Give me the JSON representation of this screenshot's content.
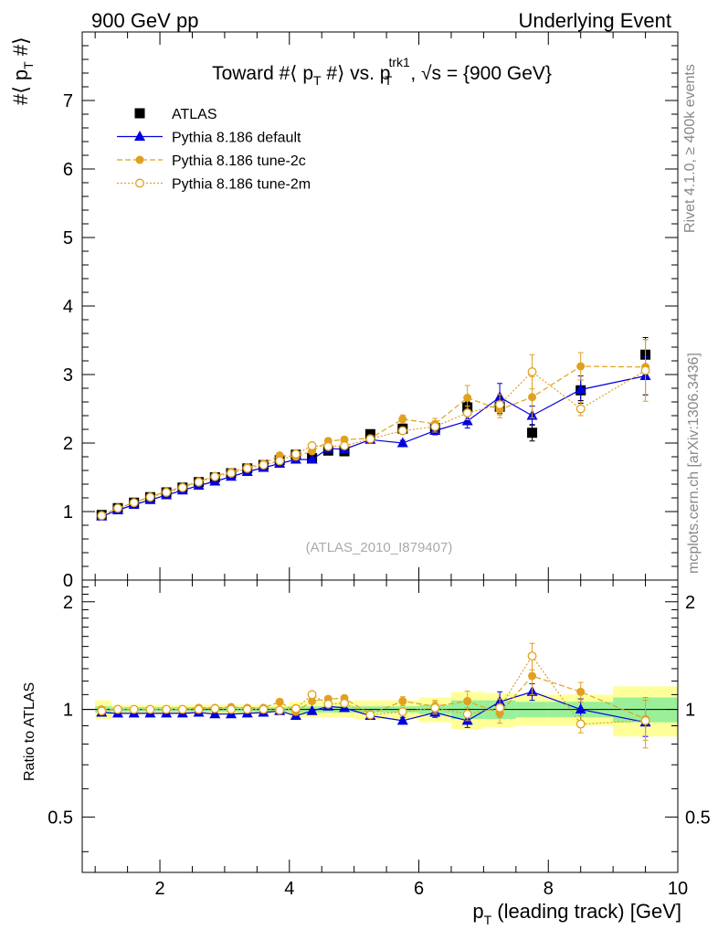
{
  "header": {
    "left": "900 GeV pp",
    "right": "Underlying Event",
    "side_top": "Rivet 4.1.0, ≥ 400k events",
    "side_bottom": "mcplots.cern.ch [arXiv:1306.3436]",
    "watermark": "(ATLAS_2010_I879407)"
  },
  "colors": {
    "atlas": "#000000",
    "default": "#0000dd",
    "tune2c": "#e0a020",
    "tune2m": "#e0a020",
    "band_inner": "#99f099",
    "band_outer": "#ffff99"
  },
  "chart_data": [
    {
      "type": "scatter",
      "title": "Toward #⟨ p_T #⟩ vs. p_T^trk1, √s = {900 GeV}",
      "title_parts": {
        "a": "Toward #⟨ p",
        "b": "T",
        "c": " #⟩ vs. p",
        "d": "trk1",
        "e": "T",
        "f": ", √s = {900 GeV}"
      },
      "ylabel": "#⟨ p_T #⟩",
      "ylabel_parts": {
        "a": "#⟨ p",
        "b": "T",
        "c": " #⟩"
      },
      "xlim": [
        0.8,
        10.0
      ],
      "ylim": [
        0,
        8
      ],
      "x_ticks": [
        2,
        4,
        6,
        8,
        10
      ],
      "y_ticks": [
        0,
        1,
        2,
        3,
        4,
        5,
        6,
        7
      ],
      "legend_position": "top-left",
      "x": [
        1.1,
        1.35,
        1.6,
        1.85,
        2.1,
        2.35,
        2.6,
        2.85,
        3.1,
        3.35,
        3.6,
        3.85,
        4.1,
        4.35,
        4.6,
        4.85,
        5.25,
        5.75,
        6.25,
        6.75,
        7.25,
        7.75,
        8.5,
        9.5
      ],
      "series": [
        {
          "name": "ATLAS",
          "style": "data",
          "values": [
            0.95,
            1.05,
            1.13,
            1.21,
            1.28,
            1.35,
            1.43,
            1.5,
            1.56,
            1.63,
            1.68,
            1.75,
            1.83,
            1.78,
            1.89,
            1.88,
            2.13,
            2.21,
            2.22,
            2.52,
            2.53,
            2.15,
            2.77,
            3.29
          ],
          "errors": [
            0.01,
            0.01,
            0.01,
            0.01,
            0.01,
            0.01,
            0.01,
            0.01,
            0.01,
            0.01,
            0.01,
            0.01,
            0.02,
            0.02,
            0.02,
            0.02,
            0.03,
            0.03,
            0.05,
            0.08,
            0.1,
            0.12,
            0.15,
            0.25
          ]
        },
        {
          "name": "Pythia 8.186 default",
          "style": "default",
          "values": [
            0.93,
            1.02,
            1.1,
            1.17,
            1.24,
            1.31,
            1.38,
            1.44,
            1.51,
            1.58,
            1.64,
            1.7,
            1.76,
            1.76,
            1.92,
            1.91,
            2.05,
            2.0,
            2.18,
            2.32,
            2.67,
            2.4,
            2.78,
            2.98
          ],
          "errors": [
            0.01,
            0.01,
            0.01,
            0.01,
            0.01,
            0.01,
            0.01,
            0.01,
            0.01,
            0.01,
            0.01,
            0.01,
            0.02,
            0.02,
            0.02,
            0.03,
            0.03,
            0.04,
            0.06,
            0.1,
            0.2,
            0.14,
            0.2,
            0.28
          ]
        },
        {
          "name": "Pythia 8.186 tune-2c",
          "style": "tune2c",
          "values": [
            0.95,
            1.05,
            1.13,
            1.22,
            1.29,
            1.36,
            1.44,
            1.52,
            1.58,
            1.65,
            1.7,
            1.82,
            1.8,
            1.88,
            2.03,
            2.05,
            2.07,
            2.35,
            2.28,
            2.66,
            2.49,
            2.67,
            3.12,
            3.11
          ],
          "errors": [
            0.01,
            0.01,
            0.01,
            0.01,
            0.01,
            0.01,
            0.01,
            0.01,
            0.01,
            0.01,
            0.02,
            0.02,
            0.02,
            0.02,
            0.03,
            0.04,
            0.04,
            0.06,
            0.08,
            0.18,
            0.12,
            0.3,
            0.2,
            0.4
          ]
        },
        {
          "name": "Pythia 8.186 tune-2m",
          "style": "tune2m",
          "values": [
            0.94,
            1.05,
            1.13,
            1.21,
            1.28,
            1.35,
            1.43,
            1.51,
            1.56,
            1.63,
            1.68,
            1.74,
            1.84,
            1.96,
            1.95,
            1.96,
            2.06,
            2.18,
            2.24,
            2.44,
            2.56,
            3.04,
            2.5,
            3.06
          ],
          "errors": [
            0.01,
            0.01,
            0.01,
            0.01,
            0.01,
            0.01,
            0.01,
            0.01,
            0.01,
            0.01,
            0.02,
            0.02,
            0.02,
            0.02,
            0.03,
            0.03,
            0.04,
            0.05,
            0.08,
            0.1,
            0.15,
            0.25,
            0.1,
            0.45
          ]
        }
      ]
    },
    {
      "type": "scatter",
      "ylabel": "Ratio to ATLAS",
      "xlabel": "p_T (leading track) [GeV]",
      "xlabel_parts": {
        "a": "p",
        "b": "T",
        "c": " (leading track) [GeV]"
      },
      "xlim": [
        0.8,
        10.0
      ],
      "ylim": [
        0.35,
        2.3
      ],
      "y_ticks": [
        0.5,
        1,
        2
      ],
      "y_tick_labels": [
        "0.5",
        "1",
        "2"
      ],
      "x_ticks": [
        2,
        4,
        6,
        8,
        10
      ],
      "bands": [
        {
          "x0": 1.0,
          "x1": 1.25,
          "inner": 0.02,
          "outer": 0.06
        },
        {
          "x0": 1.25,
          "x1": 4.0,
          "inner": 0.015,
          "outer": 0.03
        },
        {
          "x0": 4.0,
          "x1": 5.0,
          "inner": 0.02,
          "outer": 0.05
        },
        {
          "x0": 5.0,
          "x1": 6.0,
          "inner": 0.02,
          "outer": 0.06
        },
        {
          "x0": 6.0,
          "x1": 6.5,
          "inner": 0.03,
          "outer": 0.08
        },
        {
          "x0": 6.5,
          "x1": 7.0,
          "inner": 0.06,
          "outer": 0.12
        },
        {
          "x0": 7.0,
          "x1": 7.5,
          "inner": 0.06,
          "outer": 0.11
        },
        {
          "x0": 7.5,
          "x1": 8.0,
          "inner": 0.05,
          "outer": 0.1
        },
        {
          "x0": 8.0,
          "x1": 9.0,
          "inner": 0.05,
          "outer": 0.1
        },
        {
          "x0": 9.0,
          "x1": 10.0,
          "inner": 0.08,
          "outer": 0.16
        }
      ],
      "series": [
        {
          "name": "Pythia 8.186 default",
          "style": "default",
          "values": [
            0.98,
            0.975,
            0.975,
            0.975,
            0.975,
            0.975,
            0.98,
            0.97,
            0.97,
            0.975,
            0.98,
            0.99,
            0.96,
            0.99,
            1.02,
            1.01,
            0.96,
            0.93,
            0.98,
            0.93,
            1.05,
            1.12,
            1.0,
            0.92
          ],
          "errors": [
            0.01,
            0.01,
            0.01,
            0.01,
            0.01,
            0.01,
            0.01,
            0.01,
            0.01,
            0.01,
            0.01,
            0.01,
            0.01,
            0.01,
            0.01,
            0.02,
            0.02,
            0.02,
            0.03,
            0.04,
            0.07,
            0.06,
            0.07,
            0.08
          ]
        },
        {
          "name": "Pythia 8.186 tune-2c",
          "style": "tune2c",
          "values": [
            1.0,
            1.0,
            1.0,
            1.0,
            1.0,
            1.0,
            1.01,
            1.01,
            1.015,
            1.01,
            1.01,
            1.05,
            0.985,
            1.055,
            1.07,
            1.075,
            0.97,
            1.055,
            1.02,
            1.055,
            0.975,
            1.24,
            1.12,
            0.94
          ],
          "errors": [
            0.01,
            0.01,
            0.01,
            0.01,
            0.01,
            0.01,
            0.01,
            0.01,
            0.01,
            0.01,
            0.01,
            0.015,
            0.015,
            0.015,
            0.02,
            0.02,
            0.02,
            0.03,
            0.04,
            0.07,
            0.06,
            0.14,
            0.07,
            0.12
          ]
        },
        {
          "name": "Pythia 8.186 tune-2m",
          "style": "tune2m",
          "values": [
            0.99,
            1.0,
            1.0,
            1.0,
            1.0,
            1.0,
            1.0,
            1.005,
            1.0,
            1.0,
            1.0,
            0.995,
            1.005,
            1.1,
            1.035,
            1.04,
            0.965,
            0.985,
            1.01,
            0.97,
            1.01,
            1.41,
            0.91,
            0.93
          ],
          "errors": [
            0.01,
            0.01,
            0.01,
            0.01,
            0.01,
            0.01,
            0.01,
            0.01,
            0.01,
            0.01,
            0.01,
            0.01,
            0.01,
            0.015,
            0.02,
            0.02,
            0.02,
            0.02,
            0.04,
            0.04,
            0.06,
            0.12,
            0.05,
            0.15
          ]
        }
      ]
    }
  ]
}
